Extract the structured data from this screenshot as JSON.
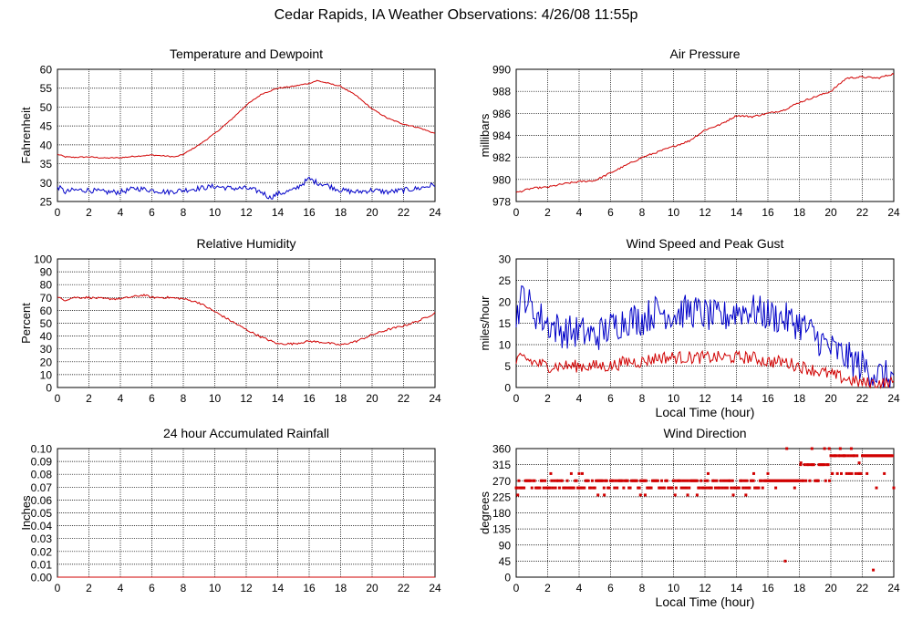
{
  "page_title": "Cedar Rapids, IA Weather Observations: 4/26/08 11:55p",
  "colors": {
    "red": "#d00000",
    "blue": "#0000c8",
    "grid": "#000000",
    "frame": "#000000"
  },
  "chart_data": [
    {
      "id": "temp",
      "type": "line",
      "title": "Temperature and Dewpoint",
      "xlabel": "",
      "ylabel": "Fahrenheit",
      "xlim": [
        0,
        24
      ],
      "ylim": [
        25,
        60
      ],
      "x_ticks": [
        0,
        2,
        4,
        6,
        8,
        10,
        12,
        14,
        16,
        18,
        20,
        22,
        24
      ],
      "y_ticks": [
        25,
        30,
        35,
        40,
        45,
        50,
        55,
        60
      ],
      "series": [
        {
          "color": "#d00000",
          "noise": 0.15,
          "x": [
            0,
            0.5,
            1,
            2,
            3,
            4,
            5,
            6,
            7,
            7.5,
            8,
            9,
            10,
            11,
            12,
            13,
            14,
            15,
            16,
            16.5,
            17,
            18,
            19,
            20,
            21,
            22,
            23,
            24
          ],
          "y": [
            37.5,
            36.8,
            36.7,
            36.8,
            36.5,
            36.6,
            37.0,
            37.3,
            37.0,
            36.8,
            37.5,
            40,
            43,
            46.5,
            50.5,
            53.5,
            55,
            55.5,
            56.3,
            57,
            56.5,
            55.5,
            53,
            49.5,
            47,
            45.5,
            44.5,
            43
          ]
        },
        {
          "color": "#0000c8",
          "noise": 0.7,
          "x": [
            0,
            0.5,
            1,
            2,
            3,
            4,
            5,
            6,
            7,
            8,
            9,
            10,
            11,
            12,
            13,
            13.5,
            14,
            15,
            15.5,
            16,
            16.5,
            17,
            18,
            19,
            20,
            21,
            22,
            23,
            24
          ],
          "y": [
            29,
            27.5,
            28,
            28,
            27.5,
            27.5,
            28.5,
            28,
            27.5,
            28,
            28.5,
            29,
            28.5,
            28.5,
            27.5,
            26,
            27,
            28,
            29.5,
            31,
            30,
            29.5,
            28,
            27.5,
            28,
            27.5,
            28,
            28.5,
            29.5
          ]
        }
      ]
    },
    {
      "id": "pressure",
      "type": "line",
      "title": "Air Pressure",
      "xlabel": "",
      "ylabel": "millibars",
      "xlim": [
        0,
        24
      ],
      "ylim": [
        978,
        990
      ],
      "x_ticks": [
        0,
        2,
        4,
        6,
        8,
        10,
        12,
        14,
        16,
        18,
        20,
        22,
        24
      ],
      "y_ticks": [
        978,
        980,
        982,
        984,
        986,
        988,
        990
      ],
      "series": [
        {
          "color": "#d00000",
          "noise": 0.08,
          "x": [
            0,
            1,
            2,
            3,
            4,
            5,
            6,
            7,
            8,
            9,
            10,
            11,
            12,
            13,
            14,
            15,
            16,
            17,
            18,
            19,
            20,
            21,
            22,
            23,
            24
          ],
          "y": [
            978.8,
            979.2,
            979.3,
            979.6,
            979.8,
            979.9,
            980.6,
            981.3,
            982.0,
            982.5,
            983.0,
            983.5,
            984.5,
            985.0,
            985.8,
            985.7,
            986.0,
            986.3,
            987.0,
            987.5,
            988.0,
            989.2,
            989.3,
            989.2,
            989.6
          ]
        }
      ]
    },
    {
      "id": "humidity",
      "type": "line",
      "title": "Relative Humidity",
      "xlabel": "",
      "ylabel": "Percent",
      "xlim": [
        0,
        24
      ],
      "ylim": [
        0,
        100
      ],
      "x_ticks": [
        0,
        2,
        4,
        6,
        8,
        10,
        12,
        14,
        16,
        18,
        20,
        22,
        24
      ],
      "y_ticks": [
        0,
        10,
        20,
        30,
        40,
        50,
        60,
        70,
        80,
        90,
        100
      ],
      "series": [
        {
          "color": "#d00000",
          "noise": 0.8,
          "x": [
            0,
            0.5,
            1,
            2,
            3,
            4,
            5,
            5.5,
            6,
            7,
            8,
            9,
            10,
            11,
            12,
            13,
            14,
            15,
            16,
            17,
            18,
            19,
            20,
            21,
            22,
            23,
            24
          ],
          "y": [
            70,
            68,
            70,
            70,
            69,
            69,
            71,
            72,
            70,
            70,
            69,
            66,
            59,
            52,
            45,
            39,
            34,
            34,
            36,
            35,
            33,
            36,
            41,
            45,
            48,
            52,
            58
          ]
        }
      ]
    },
    {
      "id": "wind",
      "type": "line",
      "title": "Wind Speed and Peak Gust",
      "xlabel": "Local Time (hour)",
      "ylabel": "miles/hour",
      "xlim": [
        0,
        24
      ],
      "ylim": [
        0,
        30
      ],
      "x_ticks": [
        0,
        2,
        4,
        6,
        8,
        10,
        12,
        14,
        16,
        18,
        20,
        22,
        24
      ],
      "y_ticks": [
        0,
        5,
        10,
        15,
        20,
        25,
        30
      ],
      "series": [
        {
          "color": "#0000c8",
          "noise": 4.0,
          "min": 0,
          "x": [
            0,
            0.5,
            1,
            2,
            3,
            4,
            5,
            6,
            7,
            8,
            9,
            10,
            11,
            12,
            13,
            14,
            15,
            16,
            17,
            18,
            19,
            20,
            21,
            22,
            23,
            24
          ],
          "y": [
            17,
            22,
            18,
            15,
            13,
            13,
            12,
            14,
            16,
            16,
            18,
            17,
            18,
            17,
            16,
            18,
            18,
            17,
            16,
            15,
            12,
            9,
            7,
            5,
            3,
            2
          ]
        },
        {
          "color": "#d00000",
          "noise": 1.5,
          "min": 0,
          "x": [
            0,
            0.5,
            1,
            2,
            3,
            4,
            5,
            6,
            7,
            8,
            9,
            10,
            11,
            12,
            13,
            14,
            15,
            16,
            17,
            18,
            19,
            20,
            21,
            22,
            23,
            24
          ],
          "y": [
            6,
            7,
            6,
            5,
            5,
            5,
            5,
            5,
            6,
            6,
            7,
            7,
            7,
            7,
            7,
            7,
            7,
            6,
            6,
            5,
            4,
            3,
            2,
            1,
            1,
            1
          ]
        }
      ]
    },
    {
      "id": "rain",
      "type": "line",
      "title": "24 hour Accumulated Rainfall",
      "xlabel": "",
      "ylabel": "Inches",
      "xlim": [
        0,
        24
      ],
      "ylim": [
        0,
        0.1
      ],
      "x_ticks": [
        0,
        2,
        4,
        6,
        8,
        10,
        12,
        14,
        16,
        18,
        20,
        22,
        24
      ],
      "y_ticks": [
        "0.00",
        "0.01",
        "0.02",
        "0.03",
        "0.04",
        "0.05",
        "0.06",
        "0.07",
        "0.08",
        "0.09",
        "0.10"
      ],
      "series": [
        {
          "color": "#d00000",
          "noise": 0,
          "x": [
            0,
            24
          ],
          "y": [
            0,
            0
          ]
        }
      ]
    },
    {
      "id": "direction",
      "type": "scatter",
      "title": "Wind Direction",
      "xlabel": "Local Time (hour)",
      "ylabel": "degrees",
      "xlim": [
        0,
        24
      ],
      "ylim": [
        0,
        360
      ],
      "x_ticks": [
        0,
        2,
        4,
        6,
        8,
        10,
        12,
        14,
        16,
        18,
        20,
        22,
        24
      ],
      "y_ticks": [
        0,
        45,
        90,
        135,
        180,
        225,
        270,
        315,
        360
      ],
      "series": [
        {
          "color": "#d00000",
          "segments": [
            [
              0,
              2,
              250,
              270
            ],
            [
              2,
              4,
              250,
              270
            ],
            [
              4,
              6,
              250,
              270
            ],
            [
              6,
              8,
              250,
              270
            ],
            [
              8,
              10,
              250,
              270
            ],
            [
              10,
              12,
              250,
              270
            ],
            [
              12,
              14,
              250,
              270
            ],
            [
              14,
              16,
              250,
              270
            ],
            [
              16,
              18,
              270,
              270
            ],
            [
              18,
              20,
              270,
              315
            ],
            [
              20,
              22,
              290,
              340
            ],
            [
              22,
              24,
              340,
              340
            ]
          ],
          "extra_points": [
            [
              0.1,
              230
            ],
            [
              2.2,
              290
            ],
            [
              3.5,
              290
            ],
            [
              4.0,
              290
            ],
            [
              4.2,
              290
            ],
            [
              5.2,
              230
            ],
            [
              5.6,
              230
            ],
            [
              7.9,
              230
            ],
            [
              8.2,
              230
            ],
            [
              10.1,
              230
            ],
            [
              10.9,
              230
            ],
            [
              11.5,
              230
            ],
            [
              12.2,
              290
            ],
            [
              13.8,
              230
            ],
            [
              14.6,
              230
            ],
            [
              15.1,
              290
            ],
            [
              16.0,
              290
            ],
            [
              16.5,
              250
            ],
            [
              17.1,
              45
            ],
            [
              17.2,
              360
            ],
            [
              17.7,
              250
            ],
            [
              18.1,
              320
            ],
            [
              18.8,
              360
            ],
            [
              19.2,
              270
            ],
            [
              19.6,
              360
            ],
            [
              19.9,
              360
            ],
            [
              20.1,
              290
            ],
            [
              20.6,
              360
            ],
            [
              21.3,
              360
            ],
            [
              21.8,
              320
            ],
            [
              22.3,
              290
            ],
            [
              22.7,
              20
            ],
            [
              22.9,
              250
            ],
            [
              23.4,
              290
            ],
            [
              24,
              250
            ]
          ]
        }
      ]
    }
  ]
}
